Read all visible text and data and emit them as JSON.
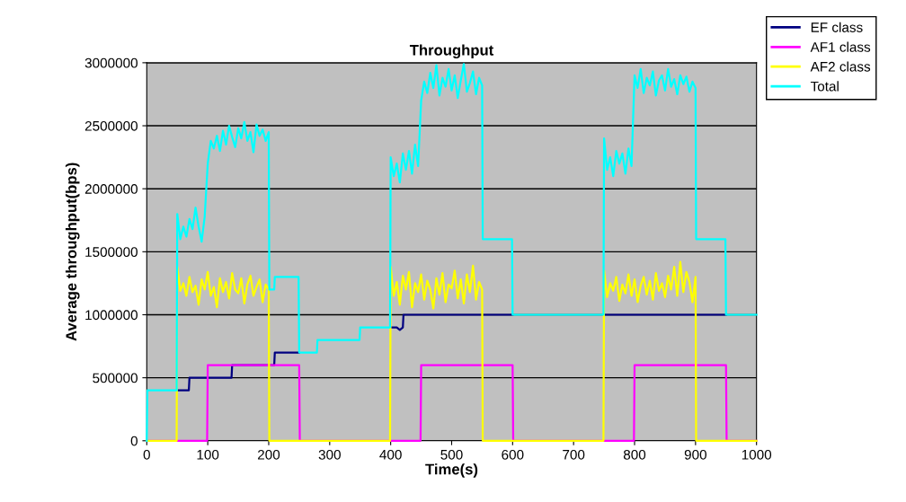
{
  "chart_data": {
    "type": "line",
    "title": "Throughput",
    "xlabel": "Time(s)",
    "ylabel": "Average throughput(bps)",
    "xlim": [
      0,
      1000
    ],
    "xticks": [
      0,
      100,
      200,
      300,
      400,
      500,
      600,
      700,
      800,
      900,
      1000
    ],
    "ylim": [
      0,
      3000000
    ],
    "yticks": [
      0,
      500000,
      1000000,
      1500000,
      2000000,
      2500000,
      3000000
    ],
    "grid": "y",
    "legend": "top right",
    "marker": "none",
    "line_style": "solid",
    "series": [
      {
        "name": "EF class",
        "color": "#000080",
        "x": [
          50,
          69,
          70,
          139,
          140,
          209,
          210,
          250,
          251,
          400,
          410,
          415,
          420,
          421,
          600,
          601,
          750,
          950
        ],
        "values": [
          400000,
          400000,
          500000,
          500000,
          600000,
          600000,
          700000,
          700000,
          null,
          900000,
          900000,
          880000,
          900000,
          1000000,
          1000000,
          null,
          1000000,
          1000000
        ]
      },
      {
        "name": "AF1 class",
        "color": "#ff00ff",
        "x": [
          0,
          99,
          100,
          250,
          251,
          449,
          450,
          600,
          601,
          799,
          800,
          950,
          951,
          1000
        ],
        "values": [
          0,
          0,
          600000,
          600000,
          0,
          0,
          600000,
          600000,
          0,
          0,
          600000,
          600000,
          0,
          0
        ]
      },
      {
        "name": "AF2 class",
        "color": "#ffff00",
        "x": [
          0,
          49,
          50,
          55,
          60,
          65,
          70,
          75,
          80,
          85,
          90,
          95,
          100,
          105,
          110,
          115,
          120,
          125,
          130,
          135,
          140,
          145,
          150,
          155,
          160,
          165,
          170,
          175,
          180,
          185,
          190,
          195,
          200,
          201,
          399,
          400,
          405,
          410,
          415,
          420,
          425,
          430,
          435,
          440,
          445,
          450,
          455,
          460,
          465,
          470,
          475,
          480,
          485,
          490,
          495,
          500,
          505,
          510,
          515,
          520,
          525,
          530,
          535,
          540,
          545,
          550,
          551,
          749,
          750,
          755,
          760,
          765,
          770,
          775,
          780,
          785,
          790,
          795,
          800,
          805,
          810,
          815,
          820,
          825,
          830,
          835,
          840,
          845,
          850,
          855,
          860,
          865,
          870,
          875,
          880,
          885,
          890,
          895,
          900,
          901,
          1000
        ],
        "values": [
          0,
          0,
          1380000,
          1190000,
          1250000,
          1150000,
          1300000,
          1180000,
          1230000,
          1080000,
          1280000,
          1200000,
          1340000,
          1150000,
          1220000,
          1060000,
          1290000,
          1180000,
          1260000,
          1130000,
          1330000,
          1200000,
          1170000,
          1290000,
          1090000,
          1240000,
          1310000,
          1150000,
          1220000,
          1280000,
          1100000,
          1240000,
          1200000,
          0,
          0,
          1380000,
          1150000,
          1260000,
          1080000,
          1310000,
          1200000,
          1340000,
          1060000,
          1250000,
          1180000,
          1320000,
          1120000,
          1270000,
          1200000,
          1050000,
          1290000,
          1160000,
          1330000,
          1100000,
          1240000,
          1210000,
          1350000,
          1130000,
          1280000,
          1090000,
          1320000,
          1180000,
          1390000,
          1120000,
          1260000,
          1200000,
          0,
          0,
          1350000,
          1140000,
          1250000,
          1190000,
          1300000,
          1110000,
          1240000,
          1170000,
          1320000,
          1150000,
          1280000,
          1100000,
          1230000,
          1300000,
          1160000,
          1270000,
          1120000,
          1330000,
          1190000,
          1250000,
          1140000,
          1310000,
          1200000,
          1380000,
          1150000,
          1420000,
          1180000,
          1340000,
          1260000,
          1100000,
          1300000,
          0,
          0
        ]
      },
      {
        "name": "Total",
        "color": "#00ffff",
        "x": [
          0,
          1,
          49,
          50,
          55,
          60,
          65,
          70,
          75,
          80,
          85,
          90,
          95,
          100,
          105,
          110,
          115,
          120,
          125,
          130,
          135,
          140,
          145,
          150,
          155,
          160,
          165,
          170,
          175,
          180,
          185,
          190,
          195,
          200,
          201,
          209,
          210,
          249,
          250,
          279,
          280,
          349,
          350,
          399,
          400,
          405,
          410,
          415,
          420,
          425,
          430,
          435,
          440,
          445,
          450,
          455,
          460,
          465,
          470,
          475,
          480,
          485,
          490,
          495,
          500,
          505,
          510,
          515,
          520,
          525,
          530,
          535,
          540,
          545,
          550,
          551,
          599,
          600,
          749,
          750,
          755,
          760,
          765,
          770,
          775,
          780,
          785,
          790,
          795,
          800,
          805,
          810,
          815,
          820,
          825,
          830,
          835,
          840,
          845,
          850,
          855,
          860,
          865,
          870,
          875,
          880,
          885,
          890,
          895,
          900,
          901,
          949,
          950,
          1000
        ],
        "values": [
          0,
          400000,
          400000,
          1800000,
          1600000,
          1700000,
          1620000,
          1760000,
          1680000,
          1850000,
          1700000,
          1580000,
          1780000,
          2200000,
          2380000,
          2320000,
          2420000,
          2300000,
          2460000,
          2350000,
          2500000,
          2410000,
          2330000,
          2480000,
          2400000,
          2530000,
          2380000,
          2450000,
          2290000,
          2510000,
          2420000,
          2470000,
          2380000,
          2450000,
          1200000,
          1200000,
          1300000,
          1300000,
          700000,
          700000,
          800000,
          800000,
          900000,
          900000,
          2250000,
          2100000,
          2200000,
          2050000,
          2280000,
          2150000,
          2300000,
          2120000,
          2350000,
          2180000,
          2700000,
          2850000,
          2760000,
          2920000,
          2800000,
          2980000,
          2740000,
          2880000,
          2810000,
          2950000,
          2780000,
          2900000,
          2720000,
          2860000,
          2990000,
          2770000,
          2840000,
          2930000,
          2750000,
          2880000,
          2820000,
          1600000,
          1600000,
          1000000,
          1000000,
          2400000,
          2150000,
          2250000,
          2100000,
          2300000,
          2200000,
          2280000,
          2120000,
          2320000,
          2180000,
          2900000,
          2800000,
          2950000,
          2760000,
          2880000,
          2820000,
          2930000,
          2740000,
          2860000,
          2900000,
          2780000,
          2950000,
          2810000,
          2870000,
          2750000,
          2900000,
          2830000,
          2890000,
          2770000,
          2850000,
          2800000,
          1600000,
          1600000,
          1000000,
          1000000
        ]
      }
    ]
  }
}
